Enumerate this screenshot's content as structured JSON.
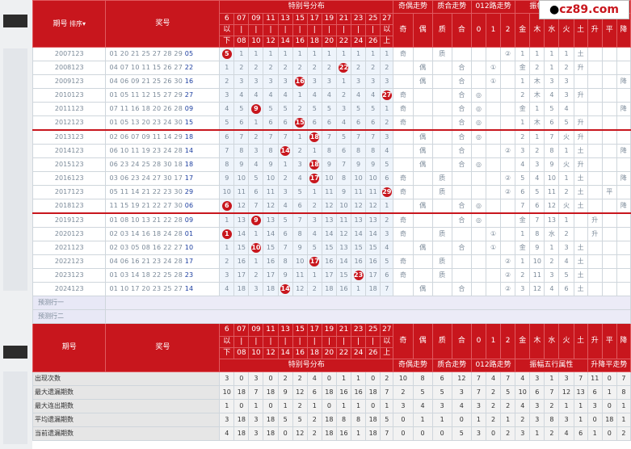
{
  "header": {
    "period": "期号",
    "sort": "排序",
    "lottery": "奖号",
    "dist": "特别号分布",
    "odd_even": "奇偶走势",
    "prime_comp": "质合走势",
    "r012": "012路走势",
    "element": "振幅五行属性",
    "trend": "升降平走势",
    "num_cols": [
      [
        "6",
        "以",
        "下"
      ],
      [
        "07",
        "|",
        "08"
      ],
      [
        "09",
        "|",
        "10"
      ],
      [
        "11",
        "|",
        "12"
      ],
      [
        "13",
        "|",
        "14"
      ],
      [
        "15",
        "|",
        "16"
      ],
      [
        "17",
        "|",
        "18"
      ],
      [
        "19",
        "|",
        "20"
      ],
      [
        "21",
        "|",
        "22"
      ],
      [
        "23",
        "|",
        "24"
      ],
      [
        "25",
        "|",
        "26"
      ],
      [
        "27",
        "以",
        "上"
      ]
    ],
    "tags": [
      "奇",
      "偶",
      "质",
      "合",
      "0",
      "1",
      "2",
      "金",
      "木",
      "水",
      "火",
      "土",
      "升",
      "平",
      "降"
    ]
  },
  "logo": "cz89.com",
  "rows": [
    {
      "id": "2007123",
      "nums": "01 20 21 25 27 28 29",
      "last": "05",
      "dist": [
        "5",
        "1",
        "1",
        "1",
        "1",
        "1",
        "1",
        "1",
        "1",
        "1",
        "1",
        "1"
      ],
      "hit": 0,
      "tags": [
        "奇",
        "",
        "质",
        "",
        "",
        "",
        "②",
        "1",
        "1",
        "1",
        "1",
        "土",
        "",
        "",
        ""
      ]
    },
    {
      "id": "2008123",
      "nums": "04 07 10 11 15 26 27",
      "last": "22",
      "dist": [
        "1",
        "2",
        "2",
        "2",
        "2",
        "2",
        "2",
        "2",
        "22",
        "2",
        "2",
        "2"
      ],
      "hit": 8,
      "tags": [
        "",
        "偶",
        "",
        "合",
        "",
        "①",
        "",
        "金",
        "2",
        "1",
        "2",
        "升",
        "",
        "",
        ""
      ]
    },
    {
      "id": "2009123",
      "nums": "04 06 09 21 25 26 30",
      "last": "16",
      "dist": [
        "2",
        "3",
        "3",
        "3",
        "3",
        "16",
        "3",
        "3",
        "1",
        "3",
        "3",
        "3"
      ],
      "hit": 5,
      "tags": [
        "",
        "偶",
        "",
        "合",
        "",
        "①",
        "",
        "1",
        "木",
        "3",
        "3",
        "",
        "",
        "",
        "降"
      ]
    },
    {
      "id": "2010123",
      "nums": "01 05 11 12 15 27 29",
      "last": "27",
      "dist": [
        "3",
        "4",
        "4",
        "4",
        "4",
        "1",
        "4",
        "4",
        "2",
        "4",
        "4",
        "27"
      ],
      "hit": 11,
      "tags": [
        "奇",
        "",
        "",
        "合",
        "◎",
        "",
        "",
        "2",
        "木",
        "4",
        "3",
        "升",
        "",
        "",
        ""
      ]
    },
    {
      "id": "2011123",
      "nums": "07 11 16 18 20 26 28",
      "last": "09",
      "dist": [
        "4",
        "5",
        "9",
        "5",
        "5",
        "2",
        "5",
        "5",
        "3",
        "5",
        "5",
        "1"
      ],
      "hit": 2,
      "tags": [
        "奇",
        "",
        "",
        "合",
        "◎",
        "",
        "",
        "金",
        "1",
        "5",
        "4",
        "",
        "",
        "",
        "降"
      ]
    },
    {
      "id": "2012123",
      "nums": "01 05 13 20 23 24 30",
      "last": "15",
      "dist": [
        "5",
        "6",
        "1",
        "6",
        "6",
        "15",
        "6",
        "6",
        "4",
        "6",
        "6",
        "2"
      ],
      "hit": 5,
      "tags": [
        "奇",
        "",
        "",
        "合",
        "◎",
        "",
        "",
        "1",
        "木",
        "6",
        "5",
        "升",
        "",
        "",
        ""
      ]
    },
    {
      "id": "2013123",
      "nums": "02 06 07 09 11 14 29",
      "last": "18",
      "dist": [
        "6",
        "7",
        "2",
        "7",
        "7",
        "1",
        "18",
        "7",
        "5",
        "7",
        "7",
        "3"
      ],
      "hit": 6,
      "tags": [
        "",
        "偶",
        "",
        "合",
        "◎",
        "",
        "",
        "2",
        "1",
        "7",
        "火",
        "升",
        "",
        "",
        ""
      ]
    },
    {
      "id": "2014123",
      "nums": "06 10 11 19 23 24 28",
      "last": "14",
      "dist": [
        "7",
        "8",
        "3",
        "8",
        "14",
        "2",
        "1",
        "8",
        "6",
        "8",
        "8",
        "4"
      ],
      "hit": 4,
      "tags": [
        "",
        "偶",
        "",
        "合",
        "",
        "",
        "②",
        "3",
        "2",
        "8",
        "1",
        "土",
        "",
        "",
        "降"
      ]
    },
    {
      "id": "2015123",
      "nums": "06 23 24 25 28 30 18",
      "last": "18",
      "dist": [
        "8",
        "9",
        "4",
        "9",
        "1",
        "3",
        "18",
        "9",
        "7",
        "9",
        "9",
        "5"
      ],
      "hit": 6,
      "tags": [
        "",
        "偶",
        "",
        "合",
        "◎",
        "",
        "",
        "4",
        "3",
        "9",
        "火",
        "升",
        "",
        "",
        ""
      ]
    },
    {
      "id": "2016123",
      "nums": "03 06 23 24 27 30 17",
      "last": "17",
      "dist": [
        "9",
        "10",
        "5",
        "10",
        "2",
        "4",
        "17",
        "10",
        "8",
        "10",
        "10",
        "6"
      ],
      "hit": 6,
      "tags": [
        "奇",
        "",
        "质",
        "",
        "",
        "",
        "②",
        "5",
        "4",
        "10",
        "1",
        "土",
        "",
        "",
        "降"
      ]
    },
    {
      "id": "2017123",
      "nums": "05 11 14 21 22 23 30",
      "last": "29",
      "dist": [
        "10",
        "11",
        "6",
        "11",
        "3",
        "5",
        "1",
        "11",
        "9",
        "11",
        "11",
        "29"
      ],
      "hit": 11,
      "tags": [
        "奇",
        "",
        "质",
        "",
        "",
        "",
        "②",
        "6",
        "5",
        "11",
        "2",
        "土",
        "",
        "平",
        ""
      ]
    },
    {
      "id": "2018123",
      "nums": "11 15 19 21 22 27 30",
      "last": "06",
      "dist": [
        "6",
        "12",
        "7",
        "12",
        "4",
        "6",
        "2",
        "12",
        "10",
        "12",
        "12",
        "1"
      ],
      "hit": 0,
      "tags": [
        "",
        "偶",
        "",
        "合",
        "◎",
        "",
        "",
        "7",
        "6",
        "12",
        "火",
        "土",
        "",
        "",
        "降"
      ]
    },
    {
      "id": "2019123",
      "nums": "01 08 10 13 21 22 28",
      "last": "09",
      "dist": [
        "1",
        "13",
        "9",
        "13",
        "5",
        "7",
        "3",
        "13",
        "11",
        "13",
        "13",
        "2"
      ],
      "hit": 2,
      "tags": [
        "奇",
        "",
        "",
        "合",
        "◎",
        "",
        "",
        "金",
        "7",
        "13",
        "1",
        "",
        "升",
        "",
        ""
      ]
    },
    {
      "id": "2020123",
      "nums": "02 03 14 16 18 24 28",
      "last": "01",
      "dist": [
        "1",
        "14",
        "1",
        "14",
        "6",
        "8",
        "4",
        "14",
        "12",
        "14",
        "14",
        "3"
      ],
      "hit": 0,
      "tags": [
        "奇",
        "",
        "质",
        "",
        "",
        "①",
        "",
        "1",
        "8",
        "水",
        "2",
        "",
        "升",
        "",
        ""
      ]
    },
    {
      "id": "2021123",
      "nums": "02 03 05 08 16 22 27",
      "last": "10",
      "dist": [
        "1",
        "15",
        "10",
        "15",
        "7",
        "9",
        "5",
        "15",
        "13",
        "15",
        "15",
        "4"
      ],
      "hit": 2,
      "tags": [
        "",
        "偶",
        "",
        "合",
        "",
        "①",
        "",
        "金",
        "9",
        "1",
        "3",
        "土",
        "",
        "",
        ""
      ]
    },
    {
      "id": "2022123",
      "nums": "04 06 16 21 23 24 28",
      "last": "17",
      "dist": [
        "2",
        "16",
        "1",
        "16",
        "8",
        "10",
        "17",
        "16",
        "14",
        "16",
        "16",
        "5"
      ],
      "hit": 6,
      "tags": [
        "奇",
        "",
        "质",
        "",
        "",
        "",
        "②",
        "1",
        "10",
        "2",
        "4",
        "土",
        "",
        "",
        ""
      ]
    },
    {
      "id": "2023123",
      "nums": "01 03 14 18 22 25 28",
      "last": "23",
      "dist": [
        "3",
        "17",
        "2",
        "17",
        "9",
        "11",
        "1",
        "17",
        "15",
        "23",
        "17",
        "6"
      ],
      "hit": 9,
      "tags": [
        "奇",
        "",
        "质",
        "",
        "",
        "",
        "②",
        "2",
        "11",
        "3",
        "5",
        "土",
        "",
        "",
        ""
      ]
    },
    {
      "id": "2024123",
      "nums": "01 10 17 20 23 25 27",
      "last": "14",
      "dist": [
        "4",
        "18",
        "3",
        "18",
        "14",
        "12",
        "2",
        "18",
        "16",
        "1",
        "18",
        "7"
      ],
      "hit": 4,
      "tags": [
        "",
        "偶",
        "",
        "合",
        "",
        "",
        "②",
        "3",
        "12",
        "4",
        "6",
        "土",
        "",
        "",
        ""
      ]
    }
  ],
  "predict": [
    "预测行一",
    "预测行二"
  ],
  "stats": [
    {
      "label": "出现次数",
      "vals": [
        "3",
        "0",
        "3",
        "0",
        "2",
        "2",
        "4",
        "0",
        "1",
        "1",
        "0",
        "2",
        "10",
        "8",
        "6",
        "12",
        "7",
        "4",
        "7",
        "4",
        "3",
        "1",
        "3",
        "7",
        "11",
        "0",
        "7"
      ]
    },
    {
      "label": "最大遗漏期数",
      "vals": [
        "10",
        "18",
        "7",
        "18",
        "9",
        "12",
        "6",
        "18",
        "16",
        "16",
        "18",
        "7",
        "2",
        "5",
        "5",
        "3",
        "7",
        "2",
        "5",
        "10",
        "6",
        "7",
        "12",
        "13",
        "6",
        "1",
        "8"
      ]
    },
    {
      "label": "最大连出期数",
      "vals": [
        "1",
        "0",
        "1",
        "0",
        "1",
        "2",
        "1",
        "0",
        "1",
        "1",
        "0",
        "1",
        "3",
        "4",
        "3",
        "4",
        "3",
        "2",
        "2",
        "4",
        "3",
        "2",
        "1",
        "1",
        "3",
        "0",
        "1"
      ]
    },
    {
      "label": "平均遗漏期数",
      "vals": [
        "3",
        "18",
        "3",
        "18",
        "5",
        "5",
        "2",
        "18",
        "8",
        "8",
        "18",
        "5",
        "0",
        "1",
        "1",
        "0",
        "1",
        "2",
        "1",
        "2",
        "3",
        "8",
        "3",
        "1",
        "0",
        "18",
        "1"
      ]
    },
    {
      "label": "当前遗漏期数",
      "vals": [
        "4",
        "18",
        "3",
        "18",
        "0",
        "12",
        "2",
        "18",
        "16",
        "1",
        "18",
        "7",
        "0",
        "0",
        "0",
        "5",
        "3",
        "0",
        "2",
        "3",
        "1",
        "2",
        "4",
        "6",
        "1",
        "0",
        "2"
      ]
    }
  ]
}
